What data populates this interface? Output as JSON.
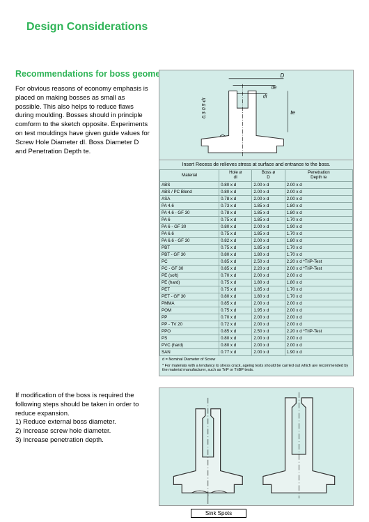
{
  "title": "Design Considerations",
  "section": "Recommendations for boss geometry",
  "para1": "For obvious reasons of economy emphasis is placed on making bosses as small as possible. This also helps to reduce flaws during moulding. Bosses should in principle comform to the sketch opposite. Experiments on test mouldings have given guide values for Screw Hole Diameter dI. Boss Diameter D and Penetration Depth te.",
  "para2_intro": "If modification of the boss is required the following steps should be taken in order to reduce expansion.",
  "para2_steps": [
    "1) Reduce external boss diameter.",
    "2) Increase screw hole diameter.",
    "3) Increase penetration depth."
  ],
  "diagram_labels": {
    "D": "D",
    "de": "de",
    "di": "dI",
    "te": "te",
    "f03": "0.3·0.5·dI"
  },
  "table": {
    "caption": "Insert Recess de relieves stress at surface and entrance to the boss.",
    "headers": [
      "Material",
      "Hole ø\ndI",
      "Boss ø\nD",
      "Penetration\nDepth te"
    ],
    "rows": [
      [
        "ABS",
        "0.80 x d",
        "2.00 x d",
        "2.00 x d"
      ],
      [
        "ABS / PC Blend",
        "0.80 x d",
        "2.00 x d",
        "2.00 x d"
      ],
      [
        "ASA",
        "0.78 x d",
        "2.00 x d",
        "2.00 x d"
      ],
      [
        "PA 4.6",
        "0.73 x d",
        "1.85 x d",
        "1.80 x d"
      ],
      [
        "PA 4.6 - GF 30",
        "0.78 x d",
        "1.85 x d",
        "1.80 x d"
      ],
      [
        "PA 6",
        "0.75 x d",
        "1.85 x d",
        "1.70 x d"
      ],
      [
        "PA 6 - GF 30",
        "0.80 x d",
        "2.00 x d",
        "1.90 x d"
      ],
      [
        "PA 6.6",
        "0.75 x d",
        "1.85 x d",
        "1.70 x d"
      ],
      [
        "PA 6.6 - GF 30",
        "0.82 x d",
        "2.00 x d",
        "1.80 x d"
      ],
      [
        "PBT",
        "0.75 x d",
        "1.85 x d",
        "1.70 x d"
      ],
      [
        "PBT - GF 30",
        "0.80 x d",
        "1.80 x d",
        "1.70 x d"
      ],
      [
        "PC",
        "0.85 x d",
        "2.50 x d",
        "2.20 x d *TriP-Test"
      ],
      [
        "PC - GF 30",
        "0.85 x d",
        "2.20 x d",
        "2.00 x d *TriP-Test"
      ],
      [
        "PE (soft)",
        "0.70 x d",
        "2.00 x d",
        "2.00 x d"
      ],
      [
        "PE (hard)",
        "0.75 x d",
        "1.80 x d",
        "1.80 x d"
      ],
      [
        "PET",
        "0.75 x d",
        "1.85 x d",
        "1.70 x d"
      ],
      [
        "PET - GF 30",
        "0.80 x d",
        "1.80 x d",
        "1.70 x d"
      ],
      [
        "PMMA",
        "0.85 x d",
        "2.00 x d",
        "2.00 x d"
      ],
      [
        "POM",
        "0.75 x d",
        "1.95 x d",
        "2.00 x d"
      ],
      [
        "PP",
        "0.70 x d",
        "2.00 x d",
        "2.00 x d"
      ],
      [
        "PP - TV 20",
        "0.72 x d",
        "2.00 x d",
        "2.00 x d"
      ],
      [
        "PPO",
        "0.85 x d",
        "2.50 x d",
        "2.20 x d *TriP-Test"
      ],
      [
        "PS",
        "0.80 x d",
        "2.00 x d",
        "2.00 x d"
      ],
      [
        "PVC (hard)",
        "0.80 x d",
        "2.00 x d",
        "2.00 x d"
      ],
      [
        "SAN",
        "0.77 x d",
        "2.00 x d",
        "1.90 x d"
      ]
    ],
    "footnote1": "d = Nominal Diameter of Screw",
    "footnote2": "* For materials with a tendancy to stress crack, ageing tests should be carried out which are recommended by the material manufacturer, such as TriP or TriBP tests."
  },
  "sink_label": "Sink Spots",
  "colors": {
    "accent": "#2fb457",
    "panel_bg": "#d3ece8",
    "border": "#8faaa6"
  }
}
